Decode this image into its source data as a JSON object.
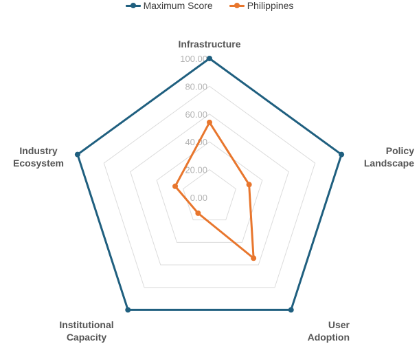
{
  "chart_data": {
    "type": "radar",
    "axes": [
      "Infrastructure",
      "Policy\nLandscape",
      "User\nAdoption",
      "Institutional\nCapacity",
      "Industry\nEcosystem"
    ],
    "rlim": [
      0,
      100
    ],
    "ticks": [
      "0.00",
      "20.00",
      "40.00",
      "60.00",
      "80.00",
      "100.00"
    ],
    "grid": true,
    "legend_position": "top-center",
    "series": [
      {
        "name": "Maximum Score",
        "color": "#1f5f7f",
        "values": [
          100,
          100,
          100,
          100,
          100
        ]
      },
      {
        "name": "Philippines",
        "color": "#e8762d",
        "values": [
          54,
          30,
          54,
          14,
          26
        ]
      }
    ]
  }
}
